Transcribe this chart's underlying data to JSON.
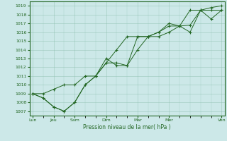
{
  "xlabel": "Pression niveau de la mer( hPa )",
  "bg_color": "#cce8e8",
  "grid_color": "#88bbaa",
  "line_color": "#226622",
  "x_tick_labels": [
    "Lun",
    "Jeu",
    "Sam",
    "Dim",
    "Mar",
    "Mer",
    "Ven"
  ],
  "x_tick_positions": [
    0,
    2,
    4,
    7,
    10,
    13,
    18
  ],
  "x_minor_positions": [
    1,
    2,
    3,
    4,
    5,
    6,
    7,
    8,
    9,
    10,
    11,
    12,
    13,
    14,
    15,
    16,
    17,
    18
  ],
  "xlim": [
    -0.3,
    18.3
  ],
  "ylim": [
    1006.5,
    1019.5
  ],
  "yticks": [
    1007,
    1008,
    1009,
    1010,
    1011,
    1012,
    1013,
    1014,
    1015,
    1016,
    1017,
    1018,
    1019
  ],
  "series": [
    {
      "x": [
        0,
        1,
        2,
        3,
        4,
        5,
        6,
        7,
        8,
        9,
        10,
        11,
        12,
        13,
        14,
        15,
        16,
        17,
        18
      ],
      "y": [
        1009.0,
        1009.0,
        1009.5,
        1010.0,
        1010.0,
        1011.0,
        1011.0,
        1013.0,
        1012.2,
        1012.2,
        1014.0,
        1015.5,
        1015.5,
        1016.0,
        1016.7,
        1016.8,
        1018.5,
        1018.8,
        1019.0
      ]
    },
    {
      "x": [
        0,
        1,
        2,
        3,
        4,
        5,
        6,
        7,
        8,
        9,
        10,
        11,
        12,
        13,
        14,
        15,
        16,
        17,
        18
      ],
      "y": [
        1009.0,
        1008.5,
        1007.5,
        1007.0,
        1008.0,
        1010.0,
        1011.0,
        1012.5,
        1012.5,
        1012.2,
        1015.5,
        1015.5,
        1016.0,
        1016.7,
        1016.7,
        1016.0,
        1018.5,
        1018.5,
        1018.5
      ]
    },
    {
      "x": [
        0,
        1,
        2,
        3,
        4,
        5,
        6,
        7,
        8,
        9,
        10,
        11,
        12,
        13,
        14,
        15,
        16,
        17,
        18
      ],
      "y": [
        1009.0,
        1008.5,
        1007.5,
        1007.0,
        1008.0,
        1010.0,
        1011.0,
        1012.5,
        1014.0,
        1015.5,
        1015.5,
        1015.5,
        1016.0,
        1017.0,
        1016.7,
        1018.5,
        1018.5,
        1017.5,
        1018.5
      ]
    }
  ]
}
